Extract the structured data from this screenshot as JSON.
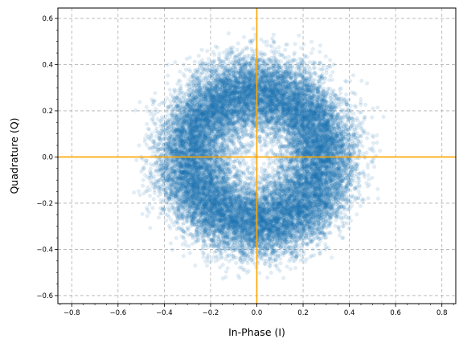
{
  "chart_data": {
    "type": "scatter",
    "title": "",
    "xlabel": "In-Phase (I)",
    "ylabel": "Quadrature (Q)",
    "xlim": [
      -0.86,
      0.86
    ],
    "ylim": [
      -0.635,
      0.645
    ],
    "xticks": [
      -0.8,
      -0.6,
      -0.4,
      -0.2,
      0.0,
      0.2,
      0.4,
      0.6,
      0.8
    ],
    "xtick_labels": [
      "−0.8",
      "−0.6",
      "−0.4",
      "−0.2",
      "0.0",
      "0.2",
      "0.4",
      "0.6",
      "0.8"
    ],
    "yticks": [
      -0.6,
      -0.4,
      -0.2,
      0.0,
      0.2,
      0.4,
      0.6
    ],
    "ytick_labels": [
      "−0.6",
      "−0.4",
      "−0.2",
      "0.0",
      "0.2",
      "0.4",
      "0.6"
    ],
    "grid": true,
    "grid_style": "dashed",
    "legend": "none",
    "reference_lines": {
      "x": 0.0,
      "y": 0.0,
      "color": "#FFA500"
    },
    "point_color": "#1f77b4",
    "point_alpha": 0.13,
    "distribution": {
      "shape": "ring",
      "center": [
        0.0,
        0.0
      ],
      "ring_radius": 0.3,
      "radial_spread": 0.08,
      "extent": 0.6,
      "point_count": 20000
    }
  }
}
